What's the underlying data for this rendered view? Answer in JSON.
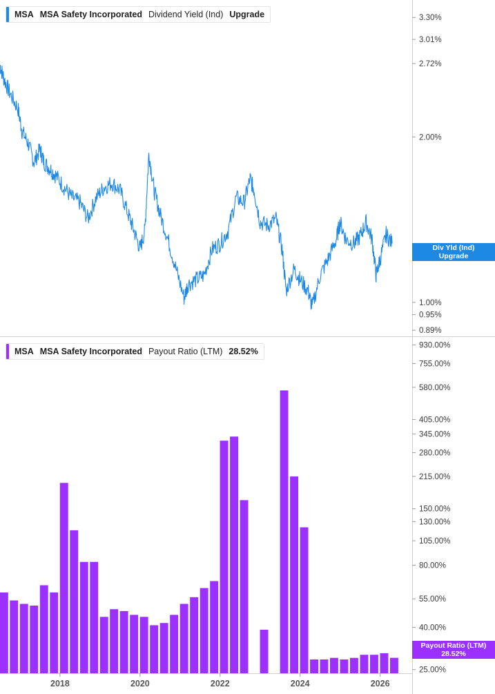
{
  "colors": {
    "yield_line": "#1e88e5",
    "payout_bar": "#9b30ff",
    "grid": "#e6e6e6",
    "axis": "#cfcfcf"
  },
  "top_legend": {
    "ticker": "MSA",
    "company": "MSA Safety Incorporated",
    "metric": "Dividend Yield (Ind)",
    "value": "Upgrade"
  },
  "bottom_legend": {
    "ticker": "MSA",
    "company": "MSA Safety Incorporated",
    "metric": "Payout Ratio (LTM)",
    "value": "28.52%"
  },
  "top_axis_tag": {
    "line1": "Div Yld (Ind)",
    "line2": "Upgrade"
  },
  "bottom_axis_tag": {
    "line1": "Payout Ratio (LTM)",
    "line2": "28.52%"
  },
  "chart_data": [
    {
      "type": "line",
      "series_name": "Dividend Yield (Ind)",
      "y_scale": "log",
      "ylim": [
        0.87,
        3.55
      ],
      "xlim": [
        2016.5,
        2026.8
      ],
      "y_ticks": [
        "3.30%",
        "3.01%",
        "2.72%",
        "2.00%",
        "1.00%",
        "0.95%",
        "0.89%"
      ],
      "y_tick_values": [
        3.3,
        3.01,
        2.72,
        2.0,
        1.0,
        0.95,
        0.89
      ],
      "points": [
        [
          2016.5,
          2.7
        ],
        [
          2016.6,
          2.55
        ],
        [
          2016.75,
          2.4
        ],
        [
          2016.95,
          2.25
        ],
        [
          2017.05,
          2.05
        ],
        [
          2017.2,
          1.95
        ],
        [
          2017.35,
          1.8
        ],
        [
          2017.5,
          1.9
        ],
        [
          2017.6,
          1.8
        ],
        [
          2017.75,
          1.75
        ],
        [
          2017.9,
          1.7
        ],
        [
          2018.1,
          1.62
        ],
        [
          2018.3,
          1.55
        ],
        [
          2018.5,
          1.52
        ],
        [
          2018.7,
          1.42
        ],
        [
          2018.9,
          1.55
        ],
        [
          2019.1,
          1.62
        ],
        [
          2019.3,
          1.65
        ],
        [
          2019.5,
          1.6
        ],
        [
          2019.7,
          1.45
        ],
        [
          2019.85,
          1.35
        ],
        [
          2020.0,
          1.25
        ],
        [
          2020.12,
          1.35
        ],
        [
          2020.22,
          1.87
        ],
        [
          2020.35,
          1.6
        ],
        [
          2020.5,
          1.45
        ],
        [
          2020.7,
          1.3
        ],
        [
          2020.9,
          1.15
        ],
        [
          2021.1,
          1.02
        ],
        [
          2021.2,
          1.08
        ],
        [
          2021.4,
          1.1
        ],
        [
          2021.6,
          1.12
        ],
        [
          2021.8,
          1.25
        ],
        [
          2022.0,
          1.28
        ],
        [
          2022.2,
          1.35
        ],
        [
          2022.4,
          1.55
        ],
        [
          2022.6,
          1.52
        ],
        [
          2022.75,
          1.68
        ],
        [
          2022.85,
          1.6
        ],
        [
          2023.0,
          1.4
        ],
        [
          2023.2,
          1.38
        ],
        [
          2023.4,
          1.42
        ],
        [
          2023.55,
          1.25
        ],
        [
          2023.65,
          1.05
        ],
        [
          2023.85,
          1.15
        ],
        [
          2024.0,
          1.1
        ],
        [
          2024.2,
          1.05
        ],
        [
          2024.3,
          0.98
        ],
        [
          2024.5,
          1.12
        ],
        [
          2024.7,
          1.2
        ],
        [
          2024.9,
          1.3
        ],
        [
          2025.0,
          1.4
        ],
        [
          2025.15,
          1.3
        ],
        [
          2025.35,
          1.28
        ],
        [
          2025.5,
          1.32
        ],
        [
          2025.65,
          1.4
        ],
        [
          2025.8,
          1.3
        ],
        [
          2025.9,
          1.12
        ],
        [
          2026.0,
          1.2
        ],
        [
          2026.15,
          1.33
        ],
        [
          2026.3,
          1.28
        ]
      ]
    },
    {
      "type": "bar",
      "series_name": "Payout Ratio (LTM)",
      "y_scale": "log",
      "ylim": [
        24,
        1000
      ],
      "xlim": [
        2016.5,
        2026.8
      ],
      "y_ticks": [
        "930.00%",
        "755.00%",
        "580.00%",
        "405.00%",
        "345.00%",
        "280.00%",
        "215.00%",
        "150.00%",
        "130.00%",
        "105.00%",
        "80.00%",
        "55.00%",
        "40.00%",
        "25.00%"
      ],
      "y_tick_values": [
        930,
        755,
        580,
        405,
        345,
        280,
        215,
        150,
        130,
        105,
        80,
        55,
        40,
        25
      ],
      "x": [
        2016.6,
        2016.85,
        2017.1,
        2017.35,
        2017.6,
        2017.85,
        2018.1,
        2018.35,
        2018.6,
        2018.85,
        2019.1,
        2019.35,
        2019.6,
        2019.85,
        2020.1,
        2020.35,
        2020.6,
        2020.85,
        2021.1,
        2021.35,
        2021.6,
        2021.85,
        2022.1,
        2022.35,
        2022.6,
        2022.85,
        2023.1,
        2023.35,
        2023.6,
        2023.85,
        2024.1,
        2024.35,
        2024.6,
        2024.85,
        2025.1,
        2025.35,
        2025.6,
        2025.85,
        2026.1,
        2026.35
      ],
      "values": [
        59,
        54,
        52,
        51,
        64,
        59,
        200,
        118,
        83,
        83,
        45,
        49,
        48,
        46,
        45,
        41,
        42,
        46,
        52,
        56,
        62,
        67,
        320,
        335,
        165,
        null,
        39,
        null,
        560,
        215,
        122,
        28,
        28,
        28.5,
        28,
        28.5,
        29.5,
        29.5,
        30,
        28.52
      ]
    }
  ],
  "x_axis": {
    "labels": [
      "2018",
      "2020",
      "2022",
      "2024",
      "2026"
    ],
    "values": [
      2018.0,
      2020.0,
      2022.0,
      2024.0,
      2026.0
    ]
  }
}
